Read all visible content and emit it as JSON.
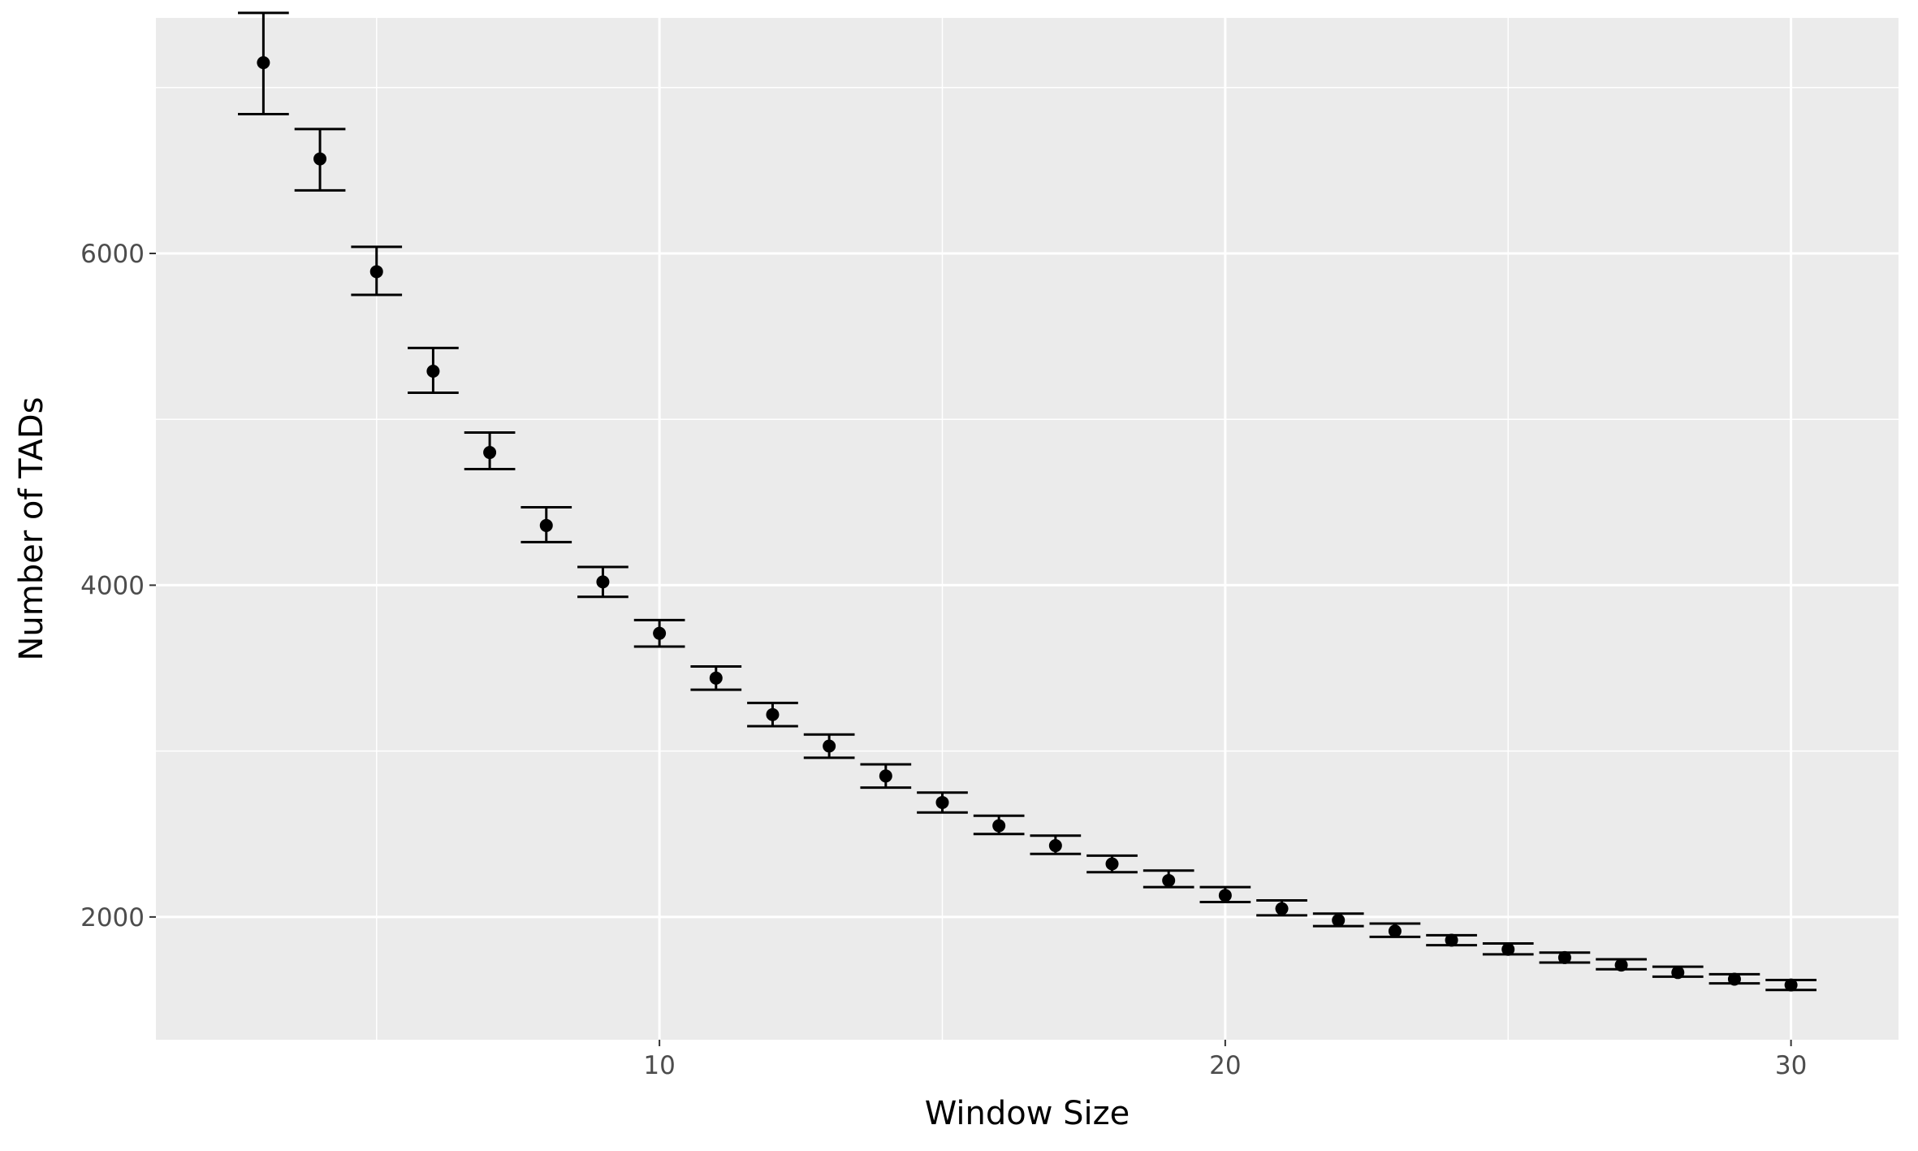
{
  "chart_data": {
    "type": "scatter",
    "subtype": "point-with-errorbars",
    "title": "",
    "xlabel": "Window Size",
    "ylabel": "Number of TADs",
    "xlim": [
      1.1,
      31.9
    ],
    "ylim": [
      1260,
      7420
    ],
    "x_ticks": [
      10,
      20,
      30
    ],
    "y_ticks": [
      2000,
      4000,
      6000
    ],
    "grid": true,
    "legend": "none",
    "colors": {
      "panel": "#ebebeb",
      "grid": "#ffffff",
      "points": "#000000",
      "errorbars": "#000000"
    },
    "series": [
      {
        "x": [
          3,
          4,
          5,
          6,
          7,
          8,
          9,
          10,
          11,
          12,
          13,
          14,
          15,
          16,
          17,
          18,
          19,
          20,
          21,
          22,
          23,
          24,
          25,
          26,
          27,
          28,
          29,
          30
        ],
        "y": [
          7150,
          6570,
          5890,
          5290,
          4800,
          4360,
          4020,
          3710,
          3440,
          3220,
          3030,
          2850,
          2690,
          2550,
          2430,
          2320,
          2220,
          2130,
          2050,
          1980,
          1915,
          1860,
          1805,
          1755,
          1710,
          1665,
          1625,
          1590
        ],
        "y_low": [
          6840,
          6380,
          5750,
          5160,
          4700,
          4260,
          3930,
          3630,
          3370,
          3150,
          2960,
          2780,
          2630,
          2500,
          2380,
          2270,
          2180,
          2090,
          2010,
          1945,
          1880,
          1830,
          1775,
          1725,
          1685,
          1640,
          1600,
          1560
        ],
        "y_high": [
          7450,
          6750,
          6040,
          5430,
          4920,
          4470,
          4110,
          3790,
          3510,
          3290,
          3100,
          2920,
          2750,
          2610,
          2490,
          2370,
          2280,
          2180,
          2100,
          2020,
          1960,
          1890,
          1840,
          1785,
          1745,
          1700,
          1655,
          1620
        ]
      }
    ]
  }
}
